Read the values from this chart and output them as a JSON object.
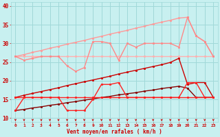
{
  "xlabel": "Vent moyen/en rafales ( km/h )",
  "background_color": "#c8f0f0",
  "grid_color": "#a0d8d8",
  "x": [
    0,
    1,
    2,
    3,
    4,
    5,
    6,
    7,
    8,
    9,
    10,
    11,
    12,
    13,
    14,
    15,
    16,
    17,
    18,
    19,
    20,
    21,
    22,
    23
  ],
  "ylim": [
    9,
    41
  ],
  "xlim": [
    -0.5,
    23.5
  ],
  "yticks": [
    10,
    15,
    20,
    25,
    30,
    35,
    40
  ],
  "pink_flat": [
    26.5,
    26.5,
    26.5,
    26.5,
    26.5,
    26.5,
    26.5,
    26.5,
    26.5,
    26.5,
    26.5,
    26.5,
    26.5,
    26.5,
    26.5,
    26.5,
    26.5,
    26.5,
    26.5,
    26.5,
    26.5,
    26.5,
    26.5,
    26.5
  ],
  "pink_wavy": [
    26.5,
    25.5,
    26.0,
    26.5,
    26.5,
    26.5,
    24.0,
    22.5,
    23.5,
    30.5,
    30.5,
    30.0,
    25.5,
    30.0,
    29.0,
    30.0,
    30.0,
    30.0,
    30.0,
    29.0,
    37.0,
    32.0,
    30.5,
    26.5
  ],
  "red_flat": [
    15.5,
    15.5,
    15.5,
    15.5,
    15.5,
    15.5,
    15.5,
    15.5,
    15.5,
    15.5,
    15.5,
    15.5,
    15.5,
    15.5,
    15.5,
    15.5,
    15.5,
    15.5,
    15.5,
    15.5,
    15.5,
    15.5,
    15.5,
    15.5
  ],
  "red_wavy": [
    12.0,
    15.5,
    15.5,
    15.5,
    15.5,
    15.5,
    12.0,
    12.0,
    12.0,
    15.0,
    19.0,
    19.0,
    19.5,
    15.5,
    15.5,
    15.5,
    15.5,
    15.5,
    15.5,
    15.5,
    19.5,
    19.5,
    15.5,
    15.5
  ],
  "dark_red_diag_x": [
    0,
    1,
    2,
    3,
    4,
    5,
    6,
    7,
    8,
    9,
    10,
    11,
    12,
    13,
    14,
    15,
    16,
    17,
    18,
    19,
    20,
    21,
    22,
    23
  ],
  "dark_red_diag_y": [
    15.5,
    16.1,
    16.6,
    17.1,
    17.6,
    18.1,
    18.7,
    19.2,
    19.7,
    20.2,
    20.7,
    21.2,
    21.8,
    22.3,
    22.8,
    23.3,
    23.8,
    24.3,
    24.9,
    26.0,
    19.0,
    19.5,
    19.5,
    15.5
  ],
  "vdark_red_diag_y": [
    12.0,
    12.3,
    12.7,
    13.0,
    13.4,
    13.7,
    14.1,
    14.4,
    14.8,
    15.1,
    15.5,
    15.8,
    16.2,
    16.5,
    16.8,
    17.2,
    17.5,
    17.9,
    18.2,
    18.5,
    18.0,
    15.5,
    15.5,
    15.5
  ],
  "pink_diag_y": [
    26.5,
    27.0,
    27.6,
    28.1,
    28.7,
    29.2,
    29.8,
    30.3,
    30.8,
    31.4,
    31.9,
    32.5,
    33.0,
    33.5,
    34.1,
    34.6,
    35.2,
    35.7,
    36.2,
    36.8,
    37.0,
    32.0,
    30.5,
    26.5
  ],
  "arrow_color": "#cc0000",
  "label_color": "#cc0000",
  "pink_flat_color": "#ffb0b0",
  "pink_wavy_color": "#ff8888",
  "pink_diag_color": "#ff9999",
  "dark_red_color": "#cc0000",
  "vdark_red_color": "#880000",
  "red_flat_color": "#ff2020",
  "red_wavy_color": "#ff2020"
}
